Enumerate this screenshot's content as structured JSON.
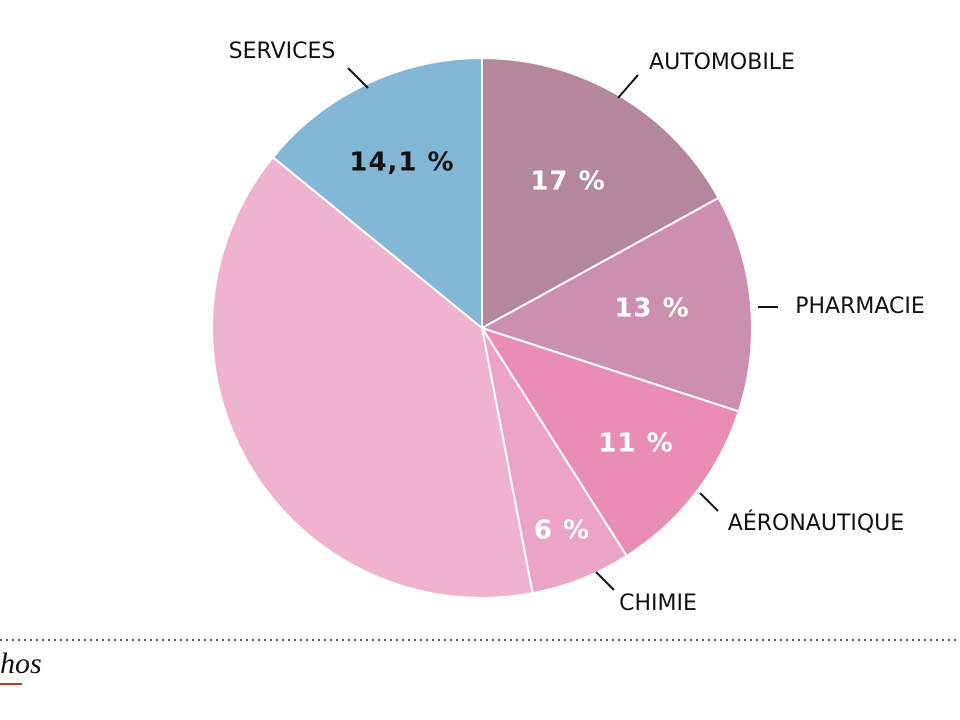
{
  "chart_data": {
    "type": "pie",
    "categories": [
      "AUTOMOBILE",
      "PHARMACIE",
      "AÉRONAUTIQUE",
      "CHIMIE",
      null,
      "SERVICES"
    ],
    "values": [
      17,
      13,
      11,
      6,
      38.9,
      14.1
    ],
    "value_labels": [
      "17 %",
      "13 %",
      "11 %",
      "6 %",
      null,
      "14,1 %"
    ],
    "colors": [
      "#b5879c",
      "#cc8fb0",
      "#e98db5",
      "#eba3c6",
      "#efb3cf",
      "#82b8d6"
    ],
    "source": "hos"
  }
}
